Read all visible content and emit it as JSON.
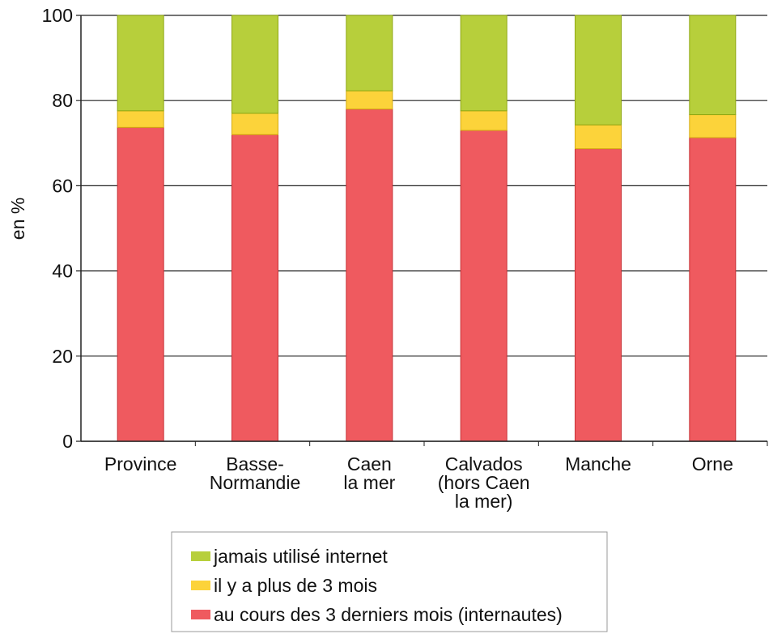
{
  "chart_data": {
    "type": "stacked_bar",
    "y_label": "en %",
    "categories": [
      "Province",
      "Basse-\nNormandie",
      "Caen\nla mer",
      "Calvados\n(hors Caen\nla mer)",
      "Manche",
      "Orne"
    ],
    "series": [
      {
        "name": "au cours des 3 derniers mois (internautes)",
        "color": "#ef5a5f",
        "values": [
          73.7,
          72,
          78,
          73,
          68.7,
          71.3
        ]
      },
      {
        "name": "il y a plus de 3 mois",
        "color": "#fcd33a",
        "values": [
          3.9,
          5,
          4.3,
          4.6,
          5.6,
          5.4
        ]
      },
      {
        "name": "jamais utilisé internet",
        "color": "#b7cf3b",
        "values": [
          22.4,
          23,
          17.7,
          22.4,
          25.7,
          23.3
        ]
      }
    ],
    "ylim": [
      0,
      100
    ],
    "yticks": [
      0,
      20,
      40,
      60,
      80,
      100
    ],
    "grid": true
  }
}
